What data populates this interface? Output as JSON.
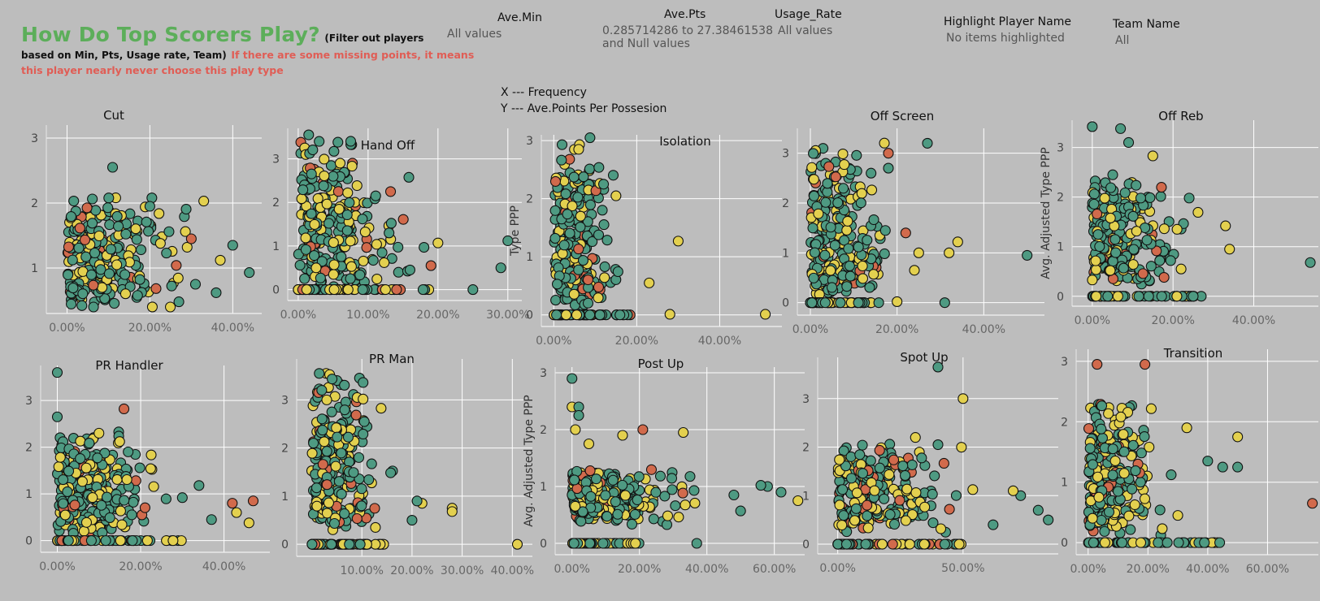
{
  "header": {
    "title": "How Do Top Scorers Play?",
    "subtitle_part1": "(Filter out players",
    "subtitle_part2": "based on Min, Pts, Usage rate, Team)",
    "note_line1": "If there are some missing points, it means",
    "note_line2": "this player nearly never choose this play type"
  },
  "filters": {
    "ave_min": {
      "label": "Ave.Min",
      "value": "All values"
    },
    "ave_pts": {
      "label": "Ave.Pts",
      "value_line1": "0.285714286 to 27.38461538",
      "value_line2": "and Null values"
    },
    "usage_rate": {
      "label": "Usage_Rate",
      "value": "All values"
    },
    "highlight": {
      "label": "Highlight Player Name",
      "value": "No items highlighted"
    },
    "team": {
      "label": "Team Name",
      "value": "All"
    }
  },
  "axis_key": {
    "x": "X --- Frequency",
    "y": "Y --- Ave.Points Per Possesion"
  },
  "colors": {
    "green": "#4e9a82",
    "yellow": "#e3d04f",
    "orange": "#d16a4c",
    "title_green": "#5cae5a",
    "note_red": "#e05d55",
    "background": "#bdbdbd"
  },
  "chart_data": [
    {
      "type": "scatter",
      "title": "Cut",
      "ylabel": "",
      "xlim": [
        -0.05,
        0.47
      ],
      "ylim": [
        0.3,
        3.2
      ],
      "yticks": [
        {
          "v": 1,
          "label": "1"
        },
        {
          "v": 2,
          "label": "2"
        },
        {
          "v": 3,
          "label": "3"
        }
      ],
      "xticks": [
        {
          "v": 0,
          "label": "0.00%"
        },
        {
          "v": 0.2,
          "label": "20.00%"
        },
        {
          "v": 0.4,
          "label": "40.00%"
        }
      ],
      "spread": {
        "x": 0.16,
        "y": 0.45,
        "ymin": 0.45,
        "ymax": 2.1
      },
      "zeroRow": false,
      "outliers": [
        [
          0.11,
          2.55
        ],
        [
          0.33,
          2.03
        ],
        [
          0.2,
          1.95
        ],
        [
          0.44,
          0.93
        ],
        [
          0.4,
          1.35
        ],
        [
          0.36,
          0.62
        ],
        [
          0.37,
          1.12
        ],
        [
          0.31,
          0.75
        ],
        [
          0.27,
          0.48
        ],
        [
          0.12,
          1.05
        ],
        [
          0.24,
          1.23
        ],
        [
          0.29,
          1.32
        ],
        [
          0.3,
          1.45
        ]
      ]
    },
    {
      "type": "scatter",
      "title": "Hand Off",
      "ylabel": "",
      "xlim": [
        -0.015,
        0.32
      ],
      "ylim": [
        -0.25,
        3.7
      ],
      "yticks": [
        {
          "v": 0,
          "label": "0"
        },
        {
          "v": 1,
          "label": "1"
        },
        {
          "v": 2,
          "label": "2"
        },
        {
          "v": 3,
          "label": "3"
        }
      ],
      "xticks": [
        {
          "v": 0,
          "label": "0.00%"
        },
        {
          "v": 0.1,
          "label": "10.00%"
        },
        {
          "v": 0.2,
          "label": "20.00%"
        },
        {
          "v": 0.3,
          "label": "30.00%"
        }
      ],
      "spread": {
        "x": 0.09,
        "y": 0.7,
        "ymin": 0.1,
        "ymax": 3.3
      },
      "zeroRow": true,
      "zeroMaxX": 0.19,
      "outliers": [
        [
          0.3,
          1.12
        ],
        [
          0.29,
          0.5
        ],
        [
          0.25,
          0.0
        ],
        [
          0.2,
          1.07
        ],
        [
          0.18,
          0.97
        ],
        [
          0.13,
          1.3
        ],
        [
          0.16,
          0.45
        ],
        [
          0.19,
          0.55
        ],
        [
          0.12,
          0.85
        ],
        [
          0.015,
          3.55
        ],
        [
          0.03,
          3.4
        ],
        [
          0.06,
          2.9
        ]
      ]
    },
    {
      "type": "scatter",
      "title": "Isolation",
      "ylabel": "Type PPP",
      "xlim": [
        -0.03,
        0.55
      ],
      "ylim": [
        -0.2,
        3.1
      ],
      "yticks": [
        {
          "v": 0,
          "label": "0"
        },
        {
          "v": 1,
          "label": "1"
        },
        {
          "v": 2,
          "label": "2"
        },
        {
          "v": 3,
          "label": "3"
        }
      ],
      "xticks": [
        {
          "v": 0,
          "label": "0.00%"
        },
        {
          "v": 0.2,
          "label": "20.00%"
        },
        {
          "v": 0.4,
          "label": "40.00%"
        }
      ],
      "spread": {
        "x": 0.09,
        "y": 0.5,
        "ymin": 0.2,
        "ymax": 2.9
      },
      "zeroRow": true,
      "zeroMaxX": 0.19,
      "outliers": [
        [
          0.51,
          0.01
        ],
        [
          0.3,
          1.27
        ],
        [
          0.28,
          0.01
        ],
        [
          0.23,
          0.55
        ],
        [
          0.06,
          2.85
        ],
        [
          0.02,
          2.93
        ],
        [
          0.15,
          2.05
        ],
        [
          0.12,
          2.25
        ]
      ]
    },
    {
      "type": "scatter",
      "title": "Off Screen",
      "ylabel": "",
      "xlim": [
        -0.03,
        0.54
      ],
      "ylim": [
        -0.25,
        3.5
      ],
      "yticks": [
        {
          "v": 0,
          "label": "0"
        },
        {
          "v": 1,
          "label": "1"
        },
        {
          "v": 2,
          "label": "2"
        },
        {
          "v": 3,
          "label": "3"
        }
      ],
      "xticks": [
        {
          "v": 0,
          "label": "0.00%"
        },
        {
          "v": 0.2,
          "label": "20.00%"
        },
        {
          "v": 0.4,
          "label": "40.00%"
        }
      ],
      "spread": {
        "x": 0.11,
        "y": 0.55,
        "ymin": 0.2,
        "ymax": 3.0
      },
      "zeroRow": true,
      "zeroMaxX": 0.16,
      "outliers": [
        [
          0.5,
          0.95
        ],
        [
          0.34,
          1.22
        ],
        [
          0.32,
          1.0
        ],
        [
          0.31,
          0.0
        ],
        [
          0.25,
          1.0
        ],
        [
          0.24,
          0.65
        ],
        [
          0.27,
          3.2
        ],
        [
          0.18,
          3.0
        ],
        [
          0.18,
          2.7
        ],
        [
          0.22,
          1.4
        ],
        [
          0.2,
          0.02
        ],
        [
          0.14,
          2.6
        ]
      ]
    },
    {
      "type": "scatter",
      "title": "Off Reb",
      "ylabel": "Avg. Adjusted Type PPP",
      "xlim": [
        -0.05,
        0.56
      ],
      "ylim": [
        -0.2,
        3.55
      ],
      "yticks": [
        {
          "v": 0,
          "label": "0"
        },
        {
          "v": 1,
          "label": "1"
        },
        {
          "v": 2,
          "label": "2"
        },
        {
          "v": 3,
          "label": "3"
        }
      ],
      "xticks": [
        {
          "v": 0,
          "label": "0.00%"
        },
        {
          "v": 0.2,
          "label": "20.00%"
        },
        {
          "v": 0.4,
          "label": "40.00%"
        }
      ],
      "spread": {
        "x": 0.13,
        "y": 0.55,
        "ymin": 0.3,
        "ymax": 2.4
      },
      "zeroRow": true,
      "zeroMaxX": 0.26,
      "outliers": [
        [
          0.54,
          0.68
        ],
        [
          0.34,
          0.95
        ],
        [
          0.33,
          1.42
        ],
        [
          0.27,
          0.0
        ],
        [
          0.25,
          0.0
        ],
        [
          0.21,
          1.35
        ],
        [
          0.22,
          0.55
        ],
        [
          0.09,
          3.1
        ],
        [
          0.07,
          3.38
        ],
        [
          0.0,
          3.42
        ],
        [
          0.15,
          2.83
        ],
        [
          0.12,
          1.98
        ],
        [
          0.24,
          1.98
        ]
      ]
    },
    {
      "type": "scatter",
      "title": "PR Handler",
      "ylabel": "",
      "xlim": [
        -0.04,
        0.51
      ],
      "ylim": [
        -0.25,
        3.75
      ],
      "yticks": [
        {
          "v": 0,
          "label": "0"
        },
        {
          "v": 1,
          "label": "1"
        },
        {
          "v": 2,
          "label": "2"
        },
        {
          "v": 3,
          "label": "3"
        }
      ],
      "xticks": [
        {
          "v": 0,
          "label": "0.00%"
        },
        {
          "v": 0.2,
          "label": "20.00%"
        },
        {
          "v": 0.4,
          "label": "40.00%"
        }
      ],
      "spread": {
        "x": 0.14,
        "y": 0.42,
        "ymin": 0.2,
        "ymax": 2.2
      },
      "zeroRow": true,
      "zeroMaxX": 0.3,
      "outliers": [
        [
          0.47,
          0.85
        ],
        [
          0.46,
          0.38
        ],
        [
          0.43,
          0.6
        ],
        [
          0.42,
          0.8
        ],
        [
          0.34,
          1.18
        ],
        [
          0.37,
          0.45
        ],
        [
          0.3,
          0.92
        ],
        [
          0.16,
          2.82
        ],
        [
          0.0,
          3.6
        ],
        [
          0.1,
          2.3
        ],
        [
          0.17,
          1.9
        ],
        [
          0.0,
          2.65
        ]
      ]
    },
    {
      "type": "scatter",
      "title": "PR Man",
      "ylabel": "",
      "xlim": [
        -0.03,
        0.44
      ],
      "ylim": [
        -0.25,
        3.85
      ],
      "yticks": [
        {
          "v": 0,
          "label": "0"
        },
        {
          "v": 1,
          "label": "1"
        },
        {
          "v": 2,
          "label": "2"
        },
        {
          "v": 3,
          "label": "3"
        }
      ],
      "xticks": [
        {
          "v": 0.1,
          "label": "10.00%"
        },
        {
          "v": 0.2,
          "label": "20.00%"
        },
        {
          "v": 0.3,
          "label": "30.00%"
        },
        {
          "v": 0.4,
          "label": "40.00%"
        }
      ],
      "spread": {
        "x": 0.09,
        "y": 0.45,
        "ymin": 0.3,
        "ymax": 3.4
      },
      "zeroRow": true,
      "zeroMaxX": 0.15,
      "outliers": [
        [
          0.41,
          0.0
        ],
        [
          0.28,
          0.75
        ],
        [
          0.28,
          0.68
        ],
        [
          0.22,
          0.85
        ],
        [
          0.2,
          0.5
        ],
        [
          0.21,
          0.9
        ],
        [
          0.015,
          3.55
        ],
        [
          0.02,
          3.2
        ],
        [
          0.03,
          3.0
        ],
        [
          0.04,
          2.75
        ]
      ]
    },
    {
      "type": "scatter",
      "title": "Post Up",
      "ylabel": "Avg. Adjusted Type PPP",
      "xlim": [
        -0.05,
        0.69
      ],
      "ylim": [
        -0.2,
        3.1
      ],
      "yticks": [
        {
          "v": 0,
          "label": "0"
        },
        {
          "v": 1,
          "label": "1"
        },
        {
          "v": 2,
          "label": "2"
        },
        {
          "v": 3,
          "label": "3"
        }
      ],
      "xticks": [
        {
          "v": 0,
          "label": "0.00%"
        },
        {
          "v": 0.2,
          "label": "20.00%"
        },
        {
          "v": 0.4,
          "label": "40.00%"
        },
        {
          "v": 0.6,
          "label": "60.00%"
        }
      ],
      "spread": {
        "x": 0.2,
        "y": 0.25,
        "ymin": 0.4,
        "ymax": 1.3
      },
      "zeroRow": true,
      "zeroMaxX": 0.2,
      "outliers": [
        [
          0.0,
          2.9
        ],
        [
          0.0,
          2.4
        ],
        [
          0.02,
          2.4
        ],
        [
          0.02,
          2.25
        ],
        [
          0.01,
          2.0
        ],
        [
          0.05,
          1.75
        ],
        [
          0.15,
          1.9
        ],
        [
          0.21,
          2.0
        ],
        [
          0.33,
          1.95
        ],
        [
          0.67,
          0.75
        ],
        [
          0.62,
          0.9
        ],
        [
          0.58,
          1.0
        ],
        [
          0.56,
          1.02
        ],
        [
          0.5,
          0.57
        ],
        [
          0.48,
          0.85
        ],
        [
          0.37,
          0.0
        ]
      ]
    },
    {
      "type": "scatter",
      "title": "Spot Up",
      "ylabel": "",
      "xlim": [
        -0.08,
        0.88
      ],
      "ylim": [
        -0.2,
        3.85
      ],
      "yticks": [
        {
          "v": 0,
          "label": "0"
        },
        {
          "v": 1,
          "label": "1"
        },
        {
          "v": 2,
          "label": "2"
        },
        {
          "v": 3,
          "label": "3"
        }
      ],
      "xticks": [
        {
          "v": 0,
          "label": "0.00%"
        },
        {
          "v": 0.5,
          "label": "50.00%"
        }
      ],
      "spread": {
        "x": 0.3,
        "y": 0.3,
        "ymin": 0.3,
        "ymax": 2.0
      },
      "zeroRow": true,
      "zeroMaxX": 0.5,
      "outliers": [
        [
          0.4,
          3.65
        ],
        [
          0.5,
          3.0
        ],
        [
          0.84,
          0.5
        ],
        [
          0.8,
          0.7
        ],
        [
          0.73,
          1.0
        ],
        [
          0.7,
          1.1
        ],
        [
          0.62,
          0.4
        ],
        [
          0.4,
          2.05
        ],
        [
          0.31,
          2.2
        ]
      ]
    },
    {
      "type": "scatter",
      "title": "Transition",
      "ylabel": "",
      "xlim": [
        -0.04,
        0.77
      ],
      "ylim": [
        -0.2,
        3.2
      ],
      "yticks": [
        {
          "v": 0,
          "label": "0"
        },
        {
          "v": 1,
          "label": "1"
        },
        {
          "v": 2,
          "label": "2"
        },
        {
          "v": 3,
          "label": "3"
        }
      ],
      "xticks": [
        {
          "v": 0,
          "label": "0.00%"
        },
        {
          "v": 0.2,
          "label": "20.00%"
        },
        {
          "v": 0.4,
          "label": "40.00%"
        },
        {
          "v": 0.6,
          "label": "60.00%"
        }
      ],
      "spread": {
        "x": 0.14,
        "y": 0.45,
        "ymin": 0.2,
        "ymax": 2.3
      },
      "zeroRow": true,
      "zeroMaxX": 0.46,
      "outliers": [
        [
          0.75,
          0.65
        ],
        [
          0.5,
          1.75
        ],
        [
          0.5,
          1.25
        ],
        [
          0.45,
          1.25
        ],
        [
          0.44,
          0.0
        ],
        [
          0.4,
          1.35
        ],
        [
          0.33,
          1.9
        ],
        [
          0.19,
          2.95
        ],
        [
          0.03,
          2.95
        ],
        [
          0.3,
          0.45
        ]
      ]
    }
  ]
}
